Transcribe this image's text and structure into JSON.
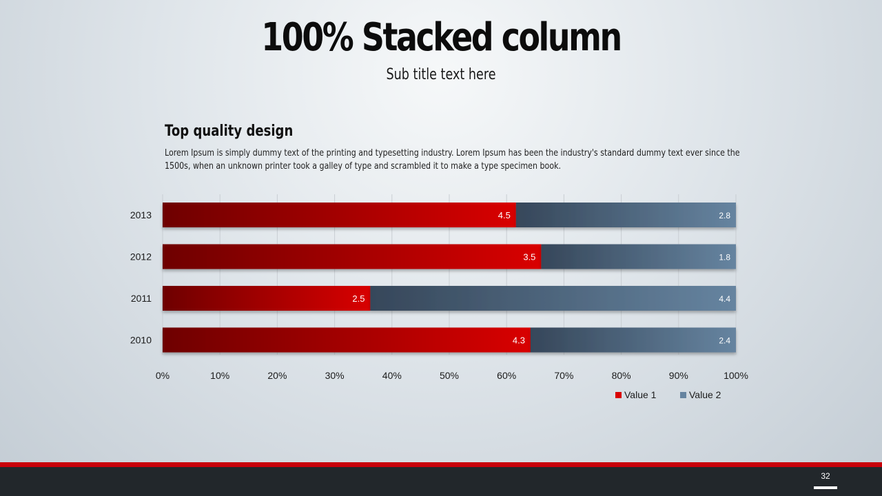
{
  "slide": {
    "title": "100% Stacked column",
    "subtitle": "Sub title text here",
    "section_heading": "Top quality design",
    "body_text": "Lorem Ipsum is simply dummy text of the printing and typesetting industry. Lorem Ipsum has been the industry's standard dummy text ever since the 1500s, when an unknown printer took a galley of type and scrambled it to make a type specimen book.",
    "page_number": "32"
  },
  "colors": {
    "value1_dark": "#6e0000",
    "value1_light": "#d90000",
    "value2_dark": "#36475a",
    "value2_light": "#6684a0",
    "accent_red": "#c8000a",
    "footer_dark": "#22272b"
  },
  "chart_data": {
    "type": "bar",
    "orientation": "horizontal",
    "stacking": "percent",
    "categories": [
      "2013",
      "2012",
      "2011",
      "2010"
    ],
    "series": [
      {
        "name": "Value 1",
        "values": [
          4.5,
          3.5,
          2.5,
          4.3
        ]
      },
      {
        "name": "Value 2",
        "values": [
          2.8,
          1.8,
          4.4,
          2.4
        ]
      }
    ],
    "x_ticks": [
      "0%",
      "10%",
      "20%",
      "30%",
      "40%",
      "50%",
      "60%",
      "70%",
      "80%",
      "90%",
      "100%"
    ],
    "xlim": [
      0,
      100
    ],
    "grid": true,
    "legend_position": "bottom-right"
  }
}
